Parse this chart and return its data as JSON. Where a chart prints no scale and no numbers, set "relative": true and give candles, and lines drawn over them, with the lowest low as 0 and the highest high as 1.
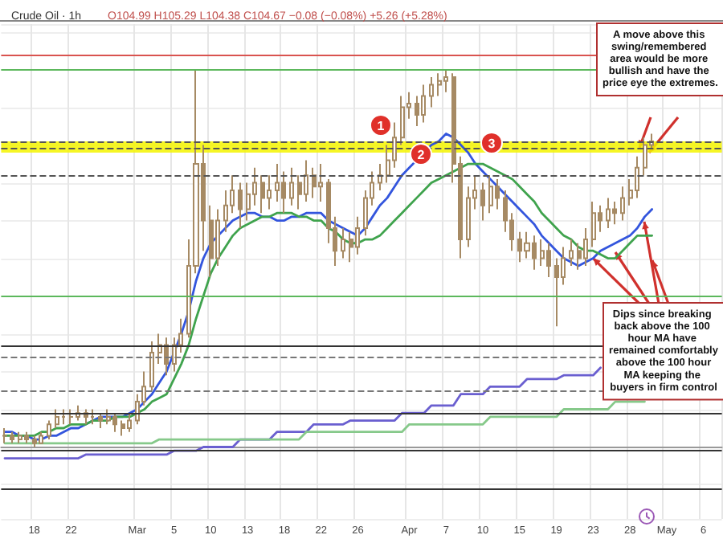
{
  "chart_data": {
    "type": "candlestick",
    "relative": true,
    "title": "Crude Oil · 1h",
    "subtitle": "O104.99 H105.29 L104.38 C104.67 −0.08 (−0.08%) +5.26 (+5.28%)",
    "grid": true,
    "marker": "none",
    "line_style": "solid",
    "categories": [
      null,
      null,
      null,
      null,
      "18",
      null,
      null,
      null,
      null,
      "22",
      null,
      null,
      null,
      null,
      null,
      null,
      null,
      null,
      "Mar",
      null,
      null,
      null,
      null,
      "5",
      null,
      null,
      null,
      null,
      "10",
      null,
      null,
      null,
      null,
      "13",
      null,
      null,
      null,
      null,
      "18",
      null,
      null,
      null,
      null,
      "22",
      null,
      null,
      null,
      null,
      "26",
      null,
      null,
      null,
      null,
      null,
      null,
      "Apr",
      null,
      null,
      null,
      null,
      "7",
      null,
      null,
      null,
      null,
      "10",
      null,
      null,
      null,
      null,
      "15",
      null,
      null,
      null,
      null,
      "19",
      null,
      null,
      null,
      null,
      "23",
      null,
      null,
      null,
      null,
      "28",
      null,
      null,
      null,
      null,
      "May",
      null,
      null,
      null,
      null,
      "6",
      null,
      null
    ],
    "series": [
      {
        "type": "candlestick",
        "color": "#a68a64",
        "ohlc": [
          [
            0.03,
            0.05,
            0.01,
            0.03
          ],
          [
            0.03,
            0.04,
            0.01,
            0.02
          ],
          [
            0.02,
            0.04,
            0.01,
            0.03
          ],
          [
            0.03,
            0.04,
            0.01,
            0.02
          ],
          [
            0.02,
            0.03,
            0,
            0.01
          ],
          [
            0.01,
            0.04,
            0.01,
            0.03
          ],
          [
            0.03,
            0.07,
            0.02,
            0.06
          ],
          [
            0.06,
            0.1,
            0.05,
            0.08
          ],
          [
            0.08,
            0.1,
            0.06,
            0.08
          ],
          [
            0.08,
            0.1,
            0.06,
            0.08
          ],
          [
            0.08,
            0.11,
            0.07,
            0.09
          ],
          [
            0.09,
            0.1,
            0.06,
            0.08
          ],
          [
            0.08,
            0.1,
            0.06,
            0.08
          ],
          [
            0.08,
            0.09,
            0.05,
            0.07
          ],
          [
            0.07,
            0.1,
            0.06,
            0.08
          ],
          [
            0.08,
            0.09,
            0.04,
            0.06
          ],
          [
            0.06,
            0.07,
            0.03,
            0.05
          ],
          [
            0.05,
            0.09,
            0.04,
            0.07
          ],
          [
            0.07,
            0.14,
            0.06,
            0.12
          ],
          [
            0.12,
            0.2,
            0.11,
            0.16
          ],
          [
            0.16,
            0.28,
            0.15,
            0.25
          ],
          [
            0.25,
            0.3,
            0.22,
            0.27
          ],
          [
            0.27,
            0.29,
            0.19,
            0.22
          ],
          [
            0.22,
            0.29,
            0.2,
            0.27
          ],
          [
            0.27,
            0.34,
            0.25,
            0.3
          ],
          [
            0.3,
            0.55,
            0.29,
            0.48
          ],
          [
            0.48,
            1,
            0.46,
            0.75
          ],
          [
            0.75,
            0.8,
            0.52,
            0.6
          ],
          [
            0.6,
            0.64,
            0.45,
            0.5
          ],
          [
            0.5,
            0.63,
            0.48,
            0.6
          ],
          [
            0.6,
            0.68,
            0.57,
            0.64
          ],
          [
            0.64,
            0.72,
            0.62,
            0.68
          ],
          [
            0.68,
            0.7,
            0.58,
            0.63
          ],
          [
            0.63,
            0.7,
            0.6,
            0.67
          ],
          [
            0.67,
            0.74,
            0.64,
            0.7
          ],
          [
            0.7,
            0.72,
            0.62,
            0.66
          ],
          [
            0.66,
            0.72,
            0.63,
            0.68
          ],
          [
            0.68,
            0.75,
            0.65,
            0.7
          ],
          [
            0.7,
            0.73,
            0.62,
            0.66
          ],
          [
            0.66,
            0.74,
            0.64,
            0.7
          ],
          [
            0.7,
            0.72,
            0.63,
            0.67
          ],
          [
            0.67,
            0.76,
            0.65,
            0.72
          ],
          [
            0.72,
            0.74,
            0.66,
            0.69
          ],
          [
            0.69,
            0.75,
            0.65,
            0.7
          ],
          [
            0.7,
            0.71,
            0.54,
            0.58
          ],
          [
            0.58,
            0.61,
            0.48,
            0.52
          ],
          [
            0.52,
            0.58,
            0.5,
            0.55
          ],
          [
            0.55,
            0.57,
            0.49,
            0.53
          ],
          [
            0.53,
            0.61,
            0.51,
            0.58
          ],
          [
            0.58,
            0.68,
            0.56,
            0.66
          ],
          [
            0.66,
            0.73,
            0.64,
            0.7
          ],
          [
            0.7,
            0.75,
            0.68,
            0.72
          ],
          [
            0.72,
            0.8,
            0.7,
            0.76
          ],
          [
            0.76,
            0.86,
            0.74,
            0.82
          ],
          [
            0.82,
            0.93,
            0.8,
            0.9
          ],
          [
            0.9,
            0.94,
            0.87,
            0.91
          ],
          [
            0.91,
            0.93,
            0.85,
            0.88
          ],
          [
            0.88,
            0.96,
            0.86,
            0.93
          ],
          [
            0.93,
            0.98,
            0.9,
            0.96
          ],
          [
            0.96,
            0.99,
            0.93,
            0.97
          ],
          [
            0.97,
            1,
            0.94,
            0.98
          ],
          [
            0.98,
            0.99,
            0.7,
            0.75
          ],
          [
            0.75,
            0.77,
            0.5,
            0.55
          ],
          [
            0.55,
            0.69,
            0.53,
            0.66
          ],
          [
            0.66,
            0.72,
            0.63,
            0.68
          ],
          [
            0.68,
            0.7,
            0.6,
            0.64
          ],
          [
            0.64,
            0.72,
            0.62,
            0.69
          ],
          [
            0.69,
            0.71,
            0.63,
            0.66
          ],
          [
            0.66,
            0.68,
            0.57,
            0.6
          ],
          [
            0.6,
            0.62,
            0.52,
            0.55
          ],
          [
            0.55,
            0.57,
            0.49,
            0.52
          ],
          [
            0.52,
            0.57,
            0.5,
            0.54
          ],
          [
            0.54,
            0.56,
            0.47,
            0.5
          ],
          [
            0.5,
            0.55,
            0.48,
            0.52
          ],
          [
            0.52,
            0.54,
            0.45,
            0.48
          ],
          [
            0.48,
            0.5,
            0.32,
            0.45
          ],
          [
            0.45,
            0.53,
            0.43,
            0.5
          ],
          [
            0.5,
            0.55,
            0.48,
            0.52
          ],
          [
            0.52,
            0.54,
            0.47,
            0.5
          ],
          [
            0.5,
            0.58,
            0.48,
            0.55
          ],
          [
            0.55,
            0.65,
            0.53,
            0.62
          ],
          [
            0.62,
            0.64,
            0.57,
            0.6
          ],
          [
            0.6,
            0.66,
            0.58,
            0.63
          ],
          [
            0.63,
            0.65,
            0.59,
            0.62
          ],
          [
            0.62,
            0.69,
            0.6,
            0.66
          ],
          [
            0.66,
            0.71,
            0.64,
            0.68
          ],
          [
            0.68,
            0.77,
            0.66,
            0.74
          ],
          [
            0.74,
            0.82,
            0.72,
            0.8
          ],
          [
            0.8,
            0.83,
            0.79,
            0.81
          ],
          null,
          null,
          null,
          null,
          null,
          null,
          null,
          null,
          null
        ]
      },
      {
        "type": "line",
        "color": "#3355dd",
        "values": [
          0.04,
          0.04,
          0.03,
          0.03,
          0.02,
          0.02,
          0.03,
          0.03,
          0.04,
          0.05,
          0.05,
          0.06,
          0.07,
          0.08,
          0.08,
          0.08,
          0.08,
          0.09,
          0.1,
          0.12,
          0.14,
          0.17,
          0.2,
          0.25,
          0.3,
          0.36,
          0.44,
          0.5,
          0.54,
          0.56,
          0.58,
          0.6,
          0.61,
          0.62,
          0.62,
          0.61,
          0.61,
          0.6,
          0.6,
          0.61,
          0.61,
          0.62,
          0.62,
          0.62,
          0.6,
          0.59,
          0.58,
          0.57,
          0.56,
          0.58,
          0.61,
          0.64,
          0.66,
          0.69,
          0.72,
          0.74,
          0.76,
          0.78,
          0.8,
          0.81,
          0.83,
          0.82,
          0.8,
          0.78,
          0.75,
          0.73,
          0.71,
          0.69,
          0.67,
          0.65,
          0.63,
          0.61,
          0.59,
          0.56,
          0.54,
          0.52,
          0.5,
          0.49,
          0.48,
          0.49,
          0.5,
          0.52,
          0.53,
          0.54,
          0.55,
          0.56,
          0.58,
          0.61,
          0.63,
          null,
          null,
          null,
          null,
          null,
          null,
          null,
          null,
          null
        ]
      },
      {
        "type": "line",
        "color": "#3fa34d",
        "values": [
          0.03,
          0.03,
          0.03,
          0.03,
          0.03,
          0.04,
          0.04,
          0.05,
          0.05,
          0.06,
          0.06,
          0.06,
          0.07,
          0.07,
          0.07,
          0.08,
          0.08,
          0.08,
          0.09,
          0.1,
          0.12,
          0.13,
          0.14,
          0.18,
          0.22,
          0.27,
          0.34,
          0.4,
          0.46,
          0.5,
          0.53,
          0.56,
          0.58,
          0.59,
          0.6,
          0.61,
          0.61,
          0.62,
          0.62,
          0.62,
          0.61,
          0.61,
          0.6,
          0.6,
          0.58,
          0.57,
          0.55,
          0.54,
          0.54,
          0.55,
          0.55,
          0.56,
          0.58,
          0.6,
          0.62,
          0.64,
          0.66,
          0.68,
          0.7,
          0.71,
          0.72,
          0.73,
          0.74,
          0.75,
          0.75,
          0.75,
          0.74,
          0.73,
          0.72,
          0.71,
          0.69,
          0.67,
          0.65,
          0.62,
          0.6,
          0.58,
          0.56,
          0.55,
          0.53,
          0.52,
          0.52,
          0.51,
          0.5,
          0.5,
          0.52,
          0.54,
          0.56,
          0.56,
          0.56,
          null,
          null,
          null,
          null,
          null,
          null,
          null,
          null,
          null
        ]
      },
      {
        "type": "line",
        "color": "#6a5fd0",
        "values": [
          -0.03,
          -0.03,
          -0.03,
          -0.03,
          -0.03,
          -0.03,
          -0.03,
          -0.03,
          -0.03,
          -0.03,
          -0.03,
          -0.02,
          -0.02,
          -0.02,
          -0.02,
          -0.02,
          -0.02,
          -0.02,
          -0.02,
          -0.02,
          -0.02,
          -0.02,
          -0.02,
          -0.01,
          -0.01,
          -0.01,
          -0.01,
          0,
          0,
          0,
          0,
          0,
          0.02,
          0.02,
          0.02,
          0.02,
          0.02,
          0.04,
          0.04,
          0.04,
          0.04,
          0.04,
          0.06,
          0.06,
          0.06,
          0.06,
          0.06,
          0.07,
          0.07,
          0.07,
          0.07,
          0.07,
          0.07,
          0.07,
          0.09,
          0.09,
          0.09,
          0.09,
          0.11,
          0.11,
          0.11,
          0.11,
          0.14,
          0.14,
          0.14,
          0.14,
          0.16,
          0.16,
          0.16,
          0.16,
          0.16,
          0.18,
          0.18,
          0.18,
          0.18,
          0.18,
          0.19,
          0.19,
          0.19,
          0.19,
          0.19,
          0.21,
          null,
          null,
          null,
          null,
          null,
          null,
          null,
          null,
          null,
          null,
          null,
          null,
          null,
          null,
          null,
          null
        ]
      },
      {
        "type": "line",
        "color": "#86c98a",
        "values": [
          0.01,
          0.01,
          0.01,
          0.01,
          0.01,
          0.01,
          0.01,
          0.01,
          0.01,
          0.01,
          0.01,
          0.01,
          0.01,
          0.01,
          0.01,
          0.01,
          0.01,
          0.01,
          0.01,
          0.01,
          0.01,
          0.02,
          0.02,
          0.02,
          0.02,
          0.02,
          0.02,
          0.02,
          0.02,
          0.02,
          0.02,
          0.02,
          0.02,
          0.02,
          0.02,
          0.02,
          0.02,
          0.02,
          0.02,
          0.02,
          0.02,
          0.04,
          0.04,
          0.04,
          0.04,
          0.04,
          0.04,
          0.04,
          0.04,
          0.04,
          0.04,
          0.04,
          0.04,
          0.04,
          0.04,
          0.06,
          0.06,
          0.06,
          0.06,
          0.06,
          0.06,
          0.06,
          0.06,
          0.06,
          0.06,
          0.06,
          0.08,
          0.08,
          0.08,
          0.08,
          0.08,
          0.08,
          0.08,
          0.08,
          0.08,
          0.08,
          0.1,
          0.1,
          0.1,
          0.1,
          0.1,
          0.1,
          0.1,
          0.12,
          0.12,
          0.12,
          0.12,
          0.12,
          null,
          null,
          null,
          null,
          null,
          null,
          null,
          null,
          null,
          null
        ]
      }
    ],
    "ref_lines": [
      {
        "axis": "y",
        "value": 1.04,
        "color": "#d9534f",
        "line_style": "solid"
      },
      {
        "axis": "y",
        "value": 1.0,
        "color": "#5cb85c",
        "line_style": "solid"
      },
      {
        "axis": "y",
        "value": 0.81,
        "color": "#555555",
        "line_style": "dashed"
      },
      {
        "axis": "y",
        "value": 0.79,
        "color": "#555555",
        "line_style": "dashed"
      },
      {
        "axis": "y",
        "value": 0.72,
        "color": "#555555",
        "line_style": "dashed"
      },
      {
        "axis": "y",
        "value": 0.4,
        "color": "#5cb85c",
        "line_style": "solid"
      },
      {
        "axis": "y",
        "value": 0.27,
        "color": "#333333",
        "line_style": "solid"
      },
      {
        "axis": "y",
        "value": 0.24,
        "color": "#777777",
        "line_style": "dashed"
      },
      {
        "axis": "y",
        "value": 0.15,
        "color": "#777777",
        "line_style": "dashed"
      },
      {
        "axis": "y",
        "value": 0.09,
        "color": "#333333",
        "line_style": "solid"
      },
      {
        "axis": "y",
        "value": -0.01,
        "color": "#333333",
        "line_style": "solid"
      },
      {
        "axis": "y",
        "value": -0.11,
        "color": "#333333",
        "line_style": "solid"
      }
    ],
    "bands": [
      {
        "axis": "y",
        "from": 0.78,
        "to": 0.81,
        "color": "#f5f500"
      }
    ],
    "annotations": [
      "1",
      "2",
      "3",
      "A move above this swing/remembered area would be more bullish and have the price eye the extremes.",
      {
        "text": "Dips since breaking back above the 100 hour MA have remained comfortably above the 100 hour MA keeping the buyers in firm control",
        "x": "23",
        "y": 0.5
      }
    ]
  }
}
